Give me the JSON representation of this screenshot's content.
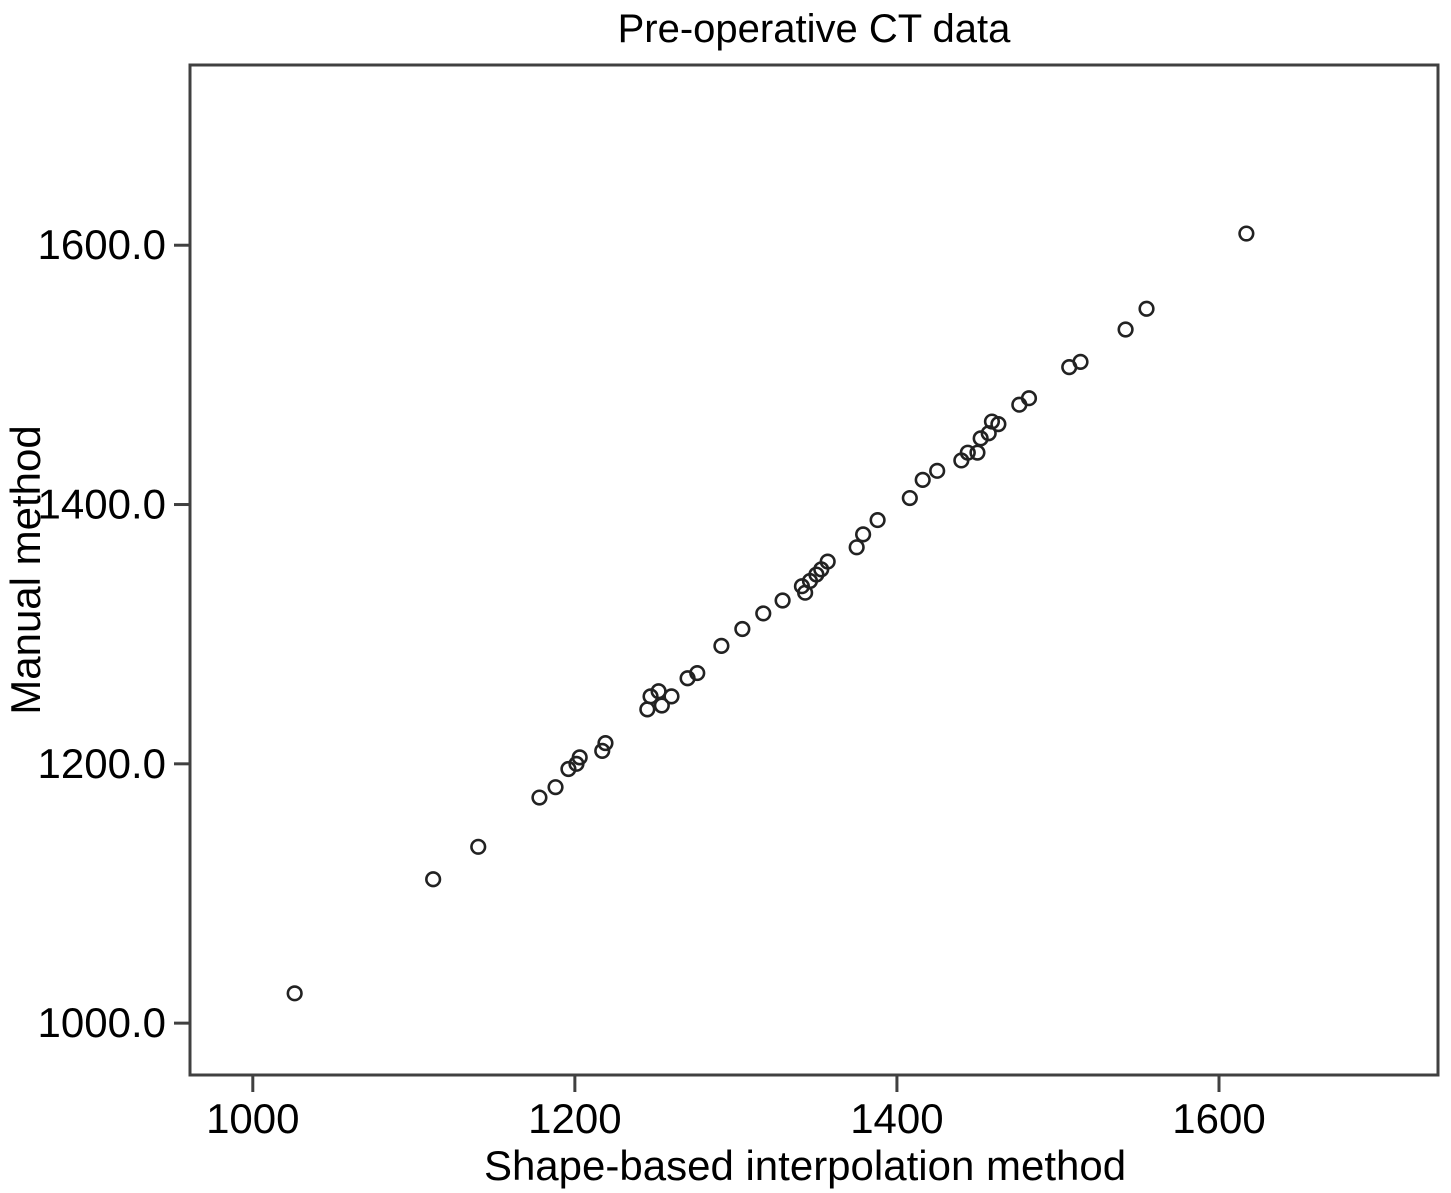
{
  "figure": {
    "title": "Pre-operative CT data",
    "xlabel": "Shape-based interpolation method",
    "ylabel": "Manual method"
  },
  "chart_data": {
    "type": "scatter",
    "title": "Pre-operative CT data",
    "xlabel": "Shape-based interpolation method",
    "ylabel": "Manual method",
    "x_range": [
      961,
      1736
    ],
    "y_range": [
      960,
      1739
    ],
    "x_ticks": [
      1000,
      1200,
      1400,
      1600
    ],
    "x_tick_labels": [
      "1000",
      "1200",
      "1400",
      "1600"
    ],
    "y_ticks": [
      1000,
      1200,
      1400,
      1600
    ],
    "y_tick_labels": [
      "1000.0",
      "1200.0",
      "1400.0",
      "1600.0"
    ],
    "grid": false,
    "legend": "none",
    "marker": {
      "shape": "open-circle",
      "radius_px": 6.8,
      "stroke": "#222222",
      "stroke_width": 2.6,
      "fill": "none"
    },
    "colors": {
      "axis_frame": "#404040",
      "tick": "#404040",
      "text": "#000000",
      "background": "#ffffff"
    },
    "points": [
      [
        1026,
        1023
      ],
      [
        1112,
        1111
      ],
      [
        1140,
        1136
      ],
      [
        1178,
        1174
      ],
      [
        1188,
        1182
      ],
      [
        1196,
        1196
      ],
      [
        1201,
        1200
      ],
      [
        1203,
        1205
      ],
      [
        1217,
        1210
      ],
      [
        1219,
        1216
      ],
      [
        1245,
        1242
      ],
      [
        1247,
        1252
      ],
      [
        1252,
        1256
      ],
      [
        1254,
        1245
      ],
      [
        1260,
        1252
      ],
      [
        1270,
        1266
      ],
      [
        1276,
        1270
      ],
      [
        1291,
        1291
      ],
      [
        1304,
        1304
      ],
      [
        1317,
        1316
      ],
      [
        1329,
        1326
      ],
      [
        1341,
        1337
      ],
      [
        1343,
        1332
      ],
      [
        1346,
        1341
      ],
      [
        1350,
        1346
      ],
      [
        1353,
        1350
      ],
      [
        1357,
        1356
      ],
      [
        1375,
        1367
      ],
      [
        1379,
        1377
      ],
      [
        1388,
        1388
      ],
      [
        1408,
        1405
      ],
      [
        1416,
        1419
      ],
      [
        1425,
        1426
      ],
      [
        1440,
        1434
      ],
      [
        1444,
        1440
      ],
      [
        1450,
        1440
      ],
      [
        1452,
        1451
      ],
      [
        1457,
        1455
      ],
      [
        1459,
        1464
      ],
      [
        1463,
        1462
      ],
      [
        1476,
        1477
      ],
      [
        1482,
        1482
      ],
      [
        1507,
        1506
      ],
      [
        1514,
        1510
      ],
      [
        1542,
        1535
      ],
      [
        1555,
        1551
      ],
      [
        1617,
        1609
      ]
    ]
  }
}
